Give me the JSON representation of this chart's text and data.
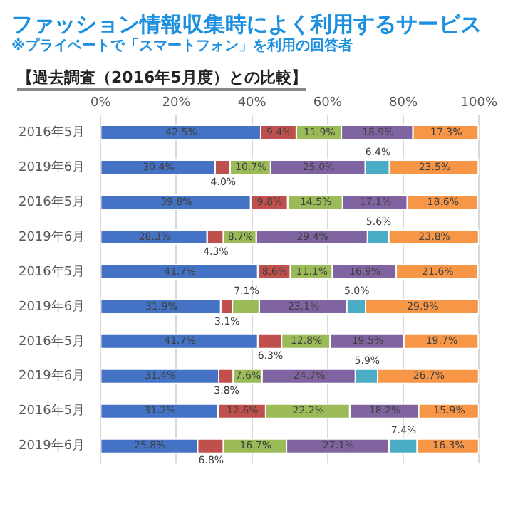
{
  "chart_data": {
    "type": "bar",
    "orientation": "horizontal",
    "stacked": true,
    "title": "ファッション情報収集時によく利用するサービス",
    "subtitle": "※プライベートで「スマートフォン」を利用の回答者",
    "annotations": [
      "【過去調査（2016年5月度）との比較】"
    ],
    "categories": [
      "2016年5月",
      "2019年6月",
      "2016年5月",
      "2019年6月",
      "2016年5月",
      "2019年6月",
      "2016年5月",
      "2019年6月",
      "2016年5月",
      "2019年6月"
    ],
    "series": [
      {
        "color": "#4472c4",
        "values": [
          42.5,
          30.4,
          39.8,
          28.3,
          41.7,
          31.9,
          41.7,
          31.4,
          31.2,
          25.8
        ],
        "value_labels": [
          "42.5%",
          "30.4%",
          "39.8%",
          "28.3%",
          "41.7%",
          "31.9%",
          "41.7%",
          "31.4%",
          "31.2%",
          "25.8%"
        ]
      },
      {
        "color": "#c0504d",
        "values": [
          9.4,
          4.0,
          9.8,
          4.3,
          8.6,
          3.1,
          6.3,
          3.8,
          12.6,
          6.8
        ],
        "value_labels": [
          "9.4%",
          "4.0%",
          "9.8%",
          "4.3%",
          "8.6%",
          "3.1%",
          "6.3%",
          "3.8%",
          "12.6%",
          "6.8%"
        ]
      },
      {
        "color": "#9bbb59",
        "values": [
          11.9,
          10.7,
          14.5,
          8.7,
          11.1,
          7.1,
          12.8,
          7.6,
          22.2,
          16.7
        ],
        "value_labels": [
          "11.9%",
          "10.7%",
          "14.5%",
          "8.7%",
          "11.1%",
          "7.1%",
          "12.8%",
          "7.6%",
          "22.2%",
          "16.7%"
        ]
      },
      {
        "color": "#8064a2",
        "values": [
          18.9,
          25.0,
          17.1,
          29.4,
          16.9,
          23.1,
          19.5,
          24.7,
          18.2,
          27.1
        ],
        "value_labels": [
          "18.9%",
          "25.0%",
          "17.1%",
          "29.4%",
          "16.9%",
          "23.1%",
          "19.5%",
          "24.7%",
          "18.2%",
          "27.1%"
        ]
      },
      {
        "color": "#4bacc6",
        "values": [
          null,
          6.4,
          null,
          5.6,
          null,
          5.0,
          null,
          5.9,
          null,
          7.4
        ],
        "value_labels": [
          null,
          "6.4%",
          null,
          "5.6%",
          null,
          "5.0%",
          null,
          "5.9%",
          null,
          "7.4%"
        ]
      },
      {
        "color": "#f79646",
        "values": [
          17.3,
          23.5,
          18.6,
          23.8,
          21.6,
          29.9,
          19.7,
          26.7,
          15.9,
          16.3
        ],
        "value_labels": [
          "17.3%",
          "23.5%",
          "18.6%",
          "23.8%",
          "21.6%",
          "29.9%",
          "19.7%",
          "26.7%",
          "15.9%",
          "16.3%"
        ]
      }
    ],
    "xlim": [
      0,
      100
    ],
    "xticks": [
      {
        "value": 0,
        "label": "0%"
      },
      {
        "value": 20,
        "label": "20%"
      },
      {
        "value": 40,
        "label": "40%"
      },
      {
        "value": 60,
        "label": "60%"
      },
      {
        "value": 80,
        "label": "80%"
      },
      {
        "value": 100,
        "label": "100%"
      }
    ],
    "grid": "x",
    "legend": false
  }
}
